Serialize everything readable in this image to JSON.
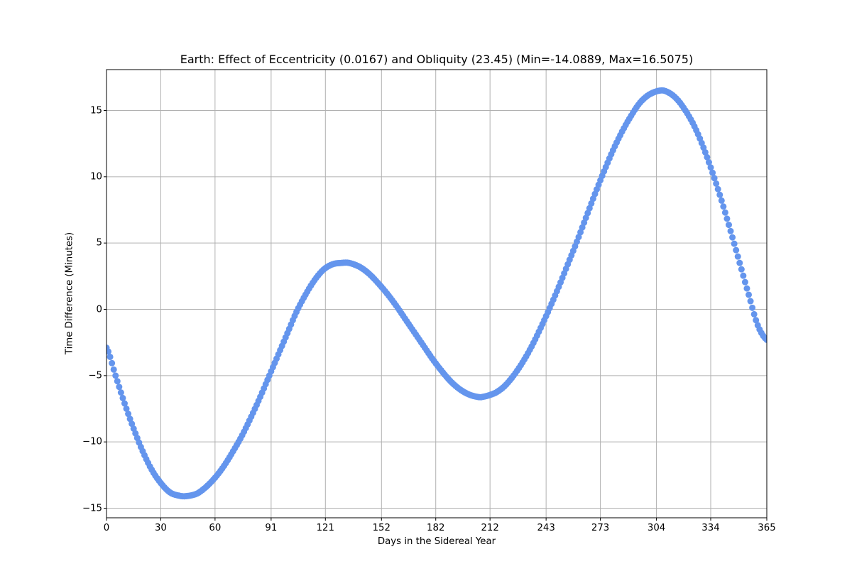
{
  "chart_data": {
    "type": "scatter",
    "title": "Earth: Effect of Eccentricity (0.0167) and Obliquity (23.45) (Min=-14.0889, Max=16.5075)",
    "xlabel": "Days in the Sidereal Year",
    "ylabel": "Time Difference (Minutes)",
    "xlim": [
      0,
      365
    ],
    "ylim": [
      -15.6,
      18.0
    ],
    "grid": true,
    "legend": null,
    "marker_color": "#6495ED",
    "x_ticks": [
      0,
      30,
      60,
      91,
      121,
      152,
      182,
      212,
      243,
      273,
      304,
      334,
      365
    ],
    "y_ticks": [
      -15,
      -10,
      -5,
      0,
      5,
      10,
      15
    ],
    "y_tick_labels": [
      "−15",
      "−10",
      "−5",
      "0",
      "5",
      "10",
      "15"
    ],
    "min": -14.0889,
    "max": 16.5075,
    "series": [
      {
        "name": "Time Difference",
        "x": [
          0,
          5,
          10,
          15,
          20,
          25,
          30,
          35,
          40,
          44,
          50,
          55,
          60,
          65,
          70,
          75,
          80,
          85,
          90,
          95,
          100,
          105,
          110,
          115,
          120,
          125,
          130,
          134,
          140,
          145,
          150,
          155,
          160,
          165,
          170,
          175,
          180,
          185,
          190,
          195,
          200,
          205,
          208,
          215,
          220,
          225,
          230,
          235,
          240,
          245,
          250,
          255,
          260,
          265,
          270,
          275,
          280,
          285,
          290,
          295,
          300,
          306,
          310,
          315,
          320,
          325,
          330,
          335,
          340,
          345,
          350,
          355,
          360,
          365
        ],
        "y": [
          -2.9,
          -5.0,
          -7.1,
          -9.0,
          -10.7,
          -12.1,
          -13.1,
          -13.8,
          -14.05,
          -14.09,
          -13.9,
          -13.4,
          -12.7,
          -11.8,
          -10.7,
          -9.5,
          -8.1,
          -6.6,
          -5.0,
          -3.4,
          -1.8,
          -0.2,
          1.1,
          2.2,
          3.0,
          3.4,
          3.5,
          3.5,
          3.2,
          2.7,
          2.0,
          1.2,
          0.3,
          -0.7,
          -1.7,
          -2.7,
          -3.7,
          -4.6,
          -5.4,
          -6.0,
          -6.4,
          -6.6,
          -6.6,
          -6.3,
          -5.8,
          -5.0,
          -4.0,
          -2.8,
          -1.4,
          0.1,
          1.7,
          3.4,
          5.1,
          6.9,
          8.7,
          10.4,
          12.0,
          13.4,
          14.6,
          15.6,
          16.2,
          16.5,
          16.4,
          15.9,
          15.0,
          13.8,
          12.2,
          10.3,
          8.2,
          5.9,
          3.5,
          1.1,
          -1.2,
          -2.3
        ]
      }
    ]
  }
}
